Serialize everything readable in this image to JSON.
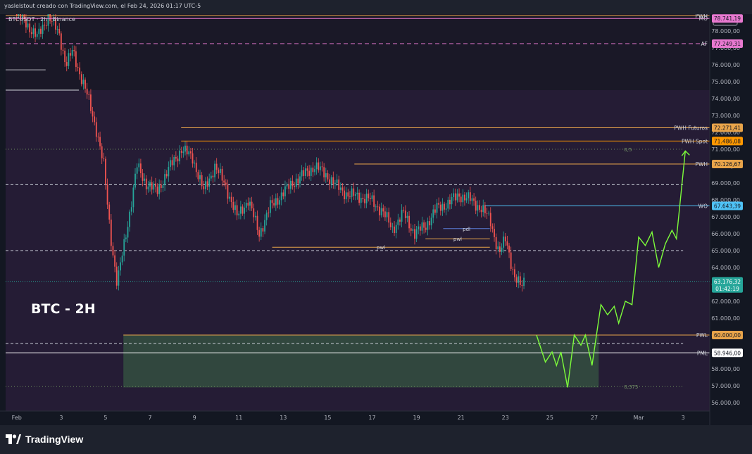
{
  "header": {
    "author_line": "yaslelstout creado con TradingView.com, el Feb 24, 2026 01:17 UTC-5"
  },
  "footer": {
    "brand": "TradingView"
  },
  "chart_data": {
    "type": "candlestick",
    "symbol_line": "BTCUSDT · 2h · Binance",
    "currency_label": "USDT",
    "overlay_title": "BTC - 2H",
    "y_ticks": [
      56000,
      57000,
      58000,
      59000,
      60000,
      61000,
      62000,
      63000,
      64000,
      65000,
      66000,
      67000,
      68000,
      69000,
      70000,
      71000,
      72000,
      73000,
      74000,
      75000,
      76000,
      77000,
      78000
    ],
    "y_tick_labels": [
      "56.000,00",
      "57.000,00",
      "58.000,00",
      "59.000,00",
      "60.000,00",
      "61.000,00",
      "62.000,00",
      "63.000,00",
      "64.000,00",
      "65.000,00",
      "66.000,00",
      "67.000,00",
      "68.000,00",
      "69.000,00",
      "70.000,00",
      "71.000,00",
      "72.000,00",
      "73.000,00",
      "74.000,00",
      "75.000,00",
      "76.000,00",
      "77.000,00",
      "78.000,00"
    ],
    "ylim": [
      55500,
      79000
    ],
    "x_day_range": [
      0.5,
      32.2
    ],
    "x_tick_labels": [
      {
        "d": 1,
        "label": "Feb"
      },
      {
        "d": 3,
        "label": "3"
      },
      {
        "d": 5,
        "label": "5"
      },
      {
        "d": 7,
        "label": "7"
      },
      {
        "d": 9,
        "label": "9"
      },
      {
        "d": 11,
        "label": "11"
      },
      {
        "d": 13,
        "label": "13"
      },
      {
        "d": 15,
        "label": "15"
      },
      {
        "d": 17,
        "label": "17"
      },
      {
        "d": 19,
        "label": "19"
      },
      {
        "d": 21,
        "label": "21"
      },
      {
        "d": 23,
        "label": "23"
      },
      {
        "d": 25,
        "label": "25"
      },
      {
        "d": 27,
        "label": "27"
      },
      {
        "d": 29,
        "label": "Mar"
      },
      {
        "d": 31,
        "label": "3"
      }
    ],
    "price_path": [
      [
        1,
        79000
      ],
      [
        1.5,
        78500
      ],
      [
        2,
        77600
      ],
      [
        2.5,
        78900
      ],
      [
        3,
        77800
      ],
      [
        3.3,
        76000
      ],
      [
        3.6,
        76800
      ],
      [
        4,
        75200
      ],
      [
        4.3,
        74000
      ],
      [
        4.7,
        72000
      ],
      [
        5,
        70000
      ],
      [
        5.3,
        66000
      ],
      [
        5.6,
        63000
      ],
      [
        5.8,
        64500
      ],
      [
        6.2,
        67500
      ],
      [
        6.5,
        70000
      ],
      [
        6.9,
        69000
      ],
      [
        7.4,
        68500
      ],
      [
        8,
        70000
      ],
      [
        8.5,
        71000
      ],
      [
        9,
        70500
      ],
      [
        9.5,
        68500
      ],
      [
        10,
        70000
      ],
      [
        10.5,
        68800
      ],
      [
        11,
        67000
      ],
      [
        11.5,
        68000
      ],
      [
        12,
        66000
      ],
      [
        12.5,
        67600
      ],
      [
        13,
        68300
      ],
      [
        13.5,
        69000
      ],
      [
        14,
        69500
      ],
      [
        14.5,
        70000
      ],
      [
        15,
        69500
      ],
      [
        15.5,
        68800
      ],
      [
        16,
        68300
      ],
      [
        16.5,
        68200
      ],
      [
        17,
        68000
      ],
      [
        17.5,
        67400
      ],
      [
        18,
        66300
      ],
      [
        18.5,
        67200
      ],
      [
        19,
        66000
      ],
      [
        19.5,
        66500
      ],
      [
        20,
        67500
      ],
      [
        20.5,
        67800
      ],
      [
        21,
        68300
      ],
      [
        21.5,
        68000
      ],
      [
        22,
        67500
      ],
      [
        22.4,
        66800
      ],
      [
        22.8,
        64800
      ],
      [
        23.1,
        65700
      ],
      [
        23.5,
        63400
      ],
      [
        23.8,
        62800
      ],
      [
        23.9,
        63176
      ]
    ],
    "projection_path": [
      [
        24.4,
        60000
      ],
      [
        24.8,
        58400
      ],
      [
        25.1,
        59000
      ],
      [
        25.3,
        58200
      ],
      [
        25.5,
        59000
      ],
      [
        25.8,
        56900
      ],
      [
        26.1,
        60000
      ],
      [
        26.4,
        59400
      ],
      [
        26.6,
        60000
      ],
      [
        26.9,
        58200
      ],
      [
        27.1,
        60000
      ],
      [
        27.3,
        61800
      ],
      [
        27.6,
        61200
      ],
      [
        27.9,
        61700
      ],
      [
        28.1,
        60700
      ],
      [
        28.4,
        62000
      ],
      [
        28.7,
        61800
      ],
      [
        29.0,
        65800
      ],
      [
        29.3,
        65300
      ],
      [
        29.6,
        66100
      ],
      [
        29.9,
        64000
      ],
      [
        30.2,
        65400
      ],
      [
        30.5,
        66200
      ],
      [
        30.7,
        65700
      ],
      [
        31.1,
        70900
      ]
    ],
    "bands": [
      {
        "from_day": 0.5,
        "to_day": 32.2,
        "low": 74500,
        "high": 79000,
        "color": "#1a1827"
      },
      {
        "from_day": 0.5,
        "to_day": 32.2,
        "low": 55500,
        "high": 74500,
        "color": "#251c35"
      }
    ],
    "demand_zone": {
      "from_day": 5.8,
      "to_day": 27.2,
      "low": 56900,
      "high": 60000,
      "color": "#3d6b45"
    },
    "levels": [
      {
        "name": "PWH",
        "price": 78900,
        "label": "PWH",
        "price_label": "",
        "color": "#e8a44a",
        "from_day": 0.5
      },
      {
        "name": "MO",
        "price": 78741.19,
        "label": "MO",
        "price_label": "78.741,19",
        "color": "#e879d0",
        "from_day": 0.5
      },
      {
        "name": "AF",
        "price": 77249.31,
        "label": "AF",
        "price_label": "77.249,31",
        "color": "#e879d0",
        "from_day": 0.5,
        "dashed": true
      },
      {
        "name": "PWH Futuros",
        "price": 72271.41,
        "label": "PWH Futuros",
        "price_label": "72.271,41",
        "color": "#e8a44a",
        "from_day": 8.4
      },
      {
        "name": "PWH Spot",
        "price": 71486.08,
        "label": "PWH Spot",
        "price_label": "71.486,08",
        "color": "#ff9800",
        "from_day": 8.4
      },
      {
        "name": "PWH",
        "price": 70126.67,
        "label": "PWH",
        "price_label": "70.126,67",
        "color": "#e8a44a",
        "from_day": 16.2
      },
      {
        "name": "WO",
        "price": 67643.39,
        "label": "WO",
        "price_label": "67.643,39",
        "color": "#4fc3f7",
        "from_day": 22.1
      },
      {
        "name": "PWL",
        "price": 60000,
        "label": "PWL",
        "price_label": "60.000,00",
        "color": "#e8a44a",
        "from_day": 5.8
      },
      {
        "name": "PML",
        "price": 58946,
        "label": "PML",
        "price_label": "58.946,00",
        "color": "#ffffff",
        "from_day": 0.5
      }
    ],
    "fib_levels": [
      {
        "value": "0,5",
        "price": 71000
      },
      {
        "value": "0,375",
        "price": 56950
      }
    ],
    "dashed_white": [
      68900,
      65000,
      59500
    ],
    "short_levels": [
      {
        "label": "pdl",
        "price": 66300,
        "from_day": 20.2,
        "to_day": 22.3,
        "color": "#5b7bd6"
      },
      {
        "label": "pwl",
        "price": 65700,
        "from_day": 19.4,
        "to_day": 22.3,
        "color": "#e8a44a"
      },
      {
        "label": "pwl",
        "price": 65200,
        "from_day": 12.5,
        "to_day": 22.3,
        "color": "#e8a44a"
      }
    ],
    "white_segments": [
      {
        "price": 75700,
        "from_day": 0.5,
        "to_day": 2.3
      },
      {
        "price": 74500,
        "from_day": 0.5,
        "to_day": 3.8
      }
    ],
    "last_price": {
      "price": 63176.32,
      "label": "63.176,32",
      "countdown": "01:42:19",
      "color": "#26a69a"
    }
  }
}
